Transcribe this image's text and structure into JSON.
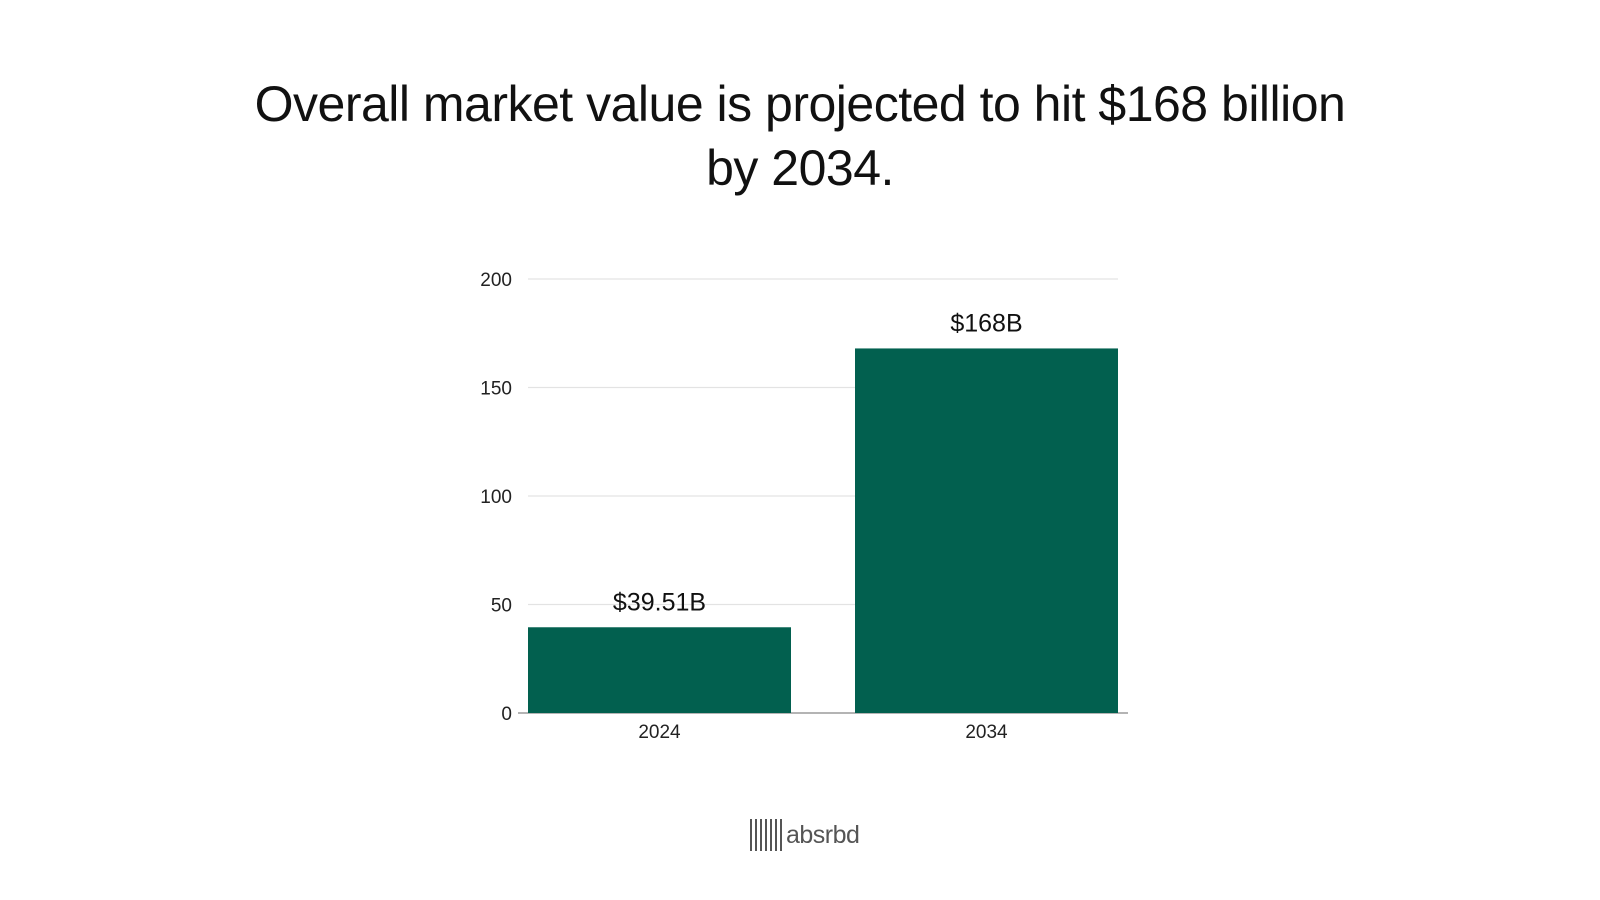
{
  "chart_data": {
    "type": "bar",
    "title_lines": [
      "Overall market value is projected to hit $168 billion",
      "by 2034."
    ],
    "categories": [
      "2024",
      "2034"
    ],
    "values": [
      39.51,
      168
    ],
    "data_labels": [
      "$39.51B",
      "$168B"
    ],
    "y_ticks": [
      "0",
      "50",
      "100",
      "150",
      "200"
    ],
    "ylim": [
      0,
      200
    ],
    "xlabel": "",
    "ylabel": "",
    "grid": true,
    "bar_color": "#02604f",
    "grid_color": "#e3e3e3",
    "axis_color": "#888888"
  },
  "footer": {
    "logo_text": "absrbd",
    "logo_icon": "barcode-icon"
  }
}
